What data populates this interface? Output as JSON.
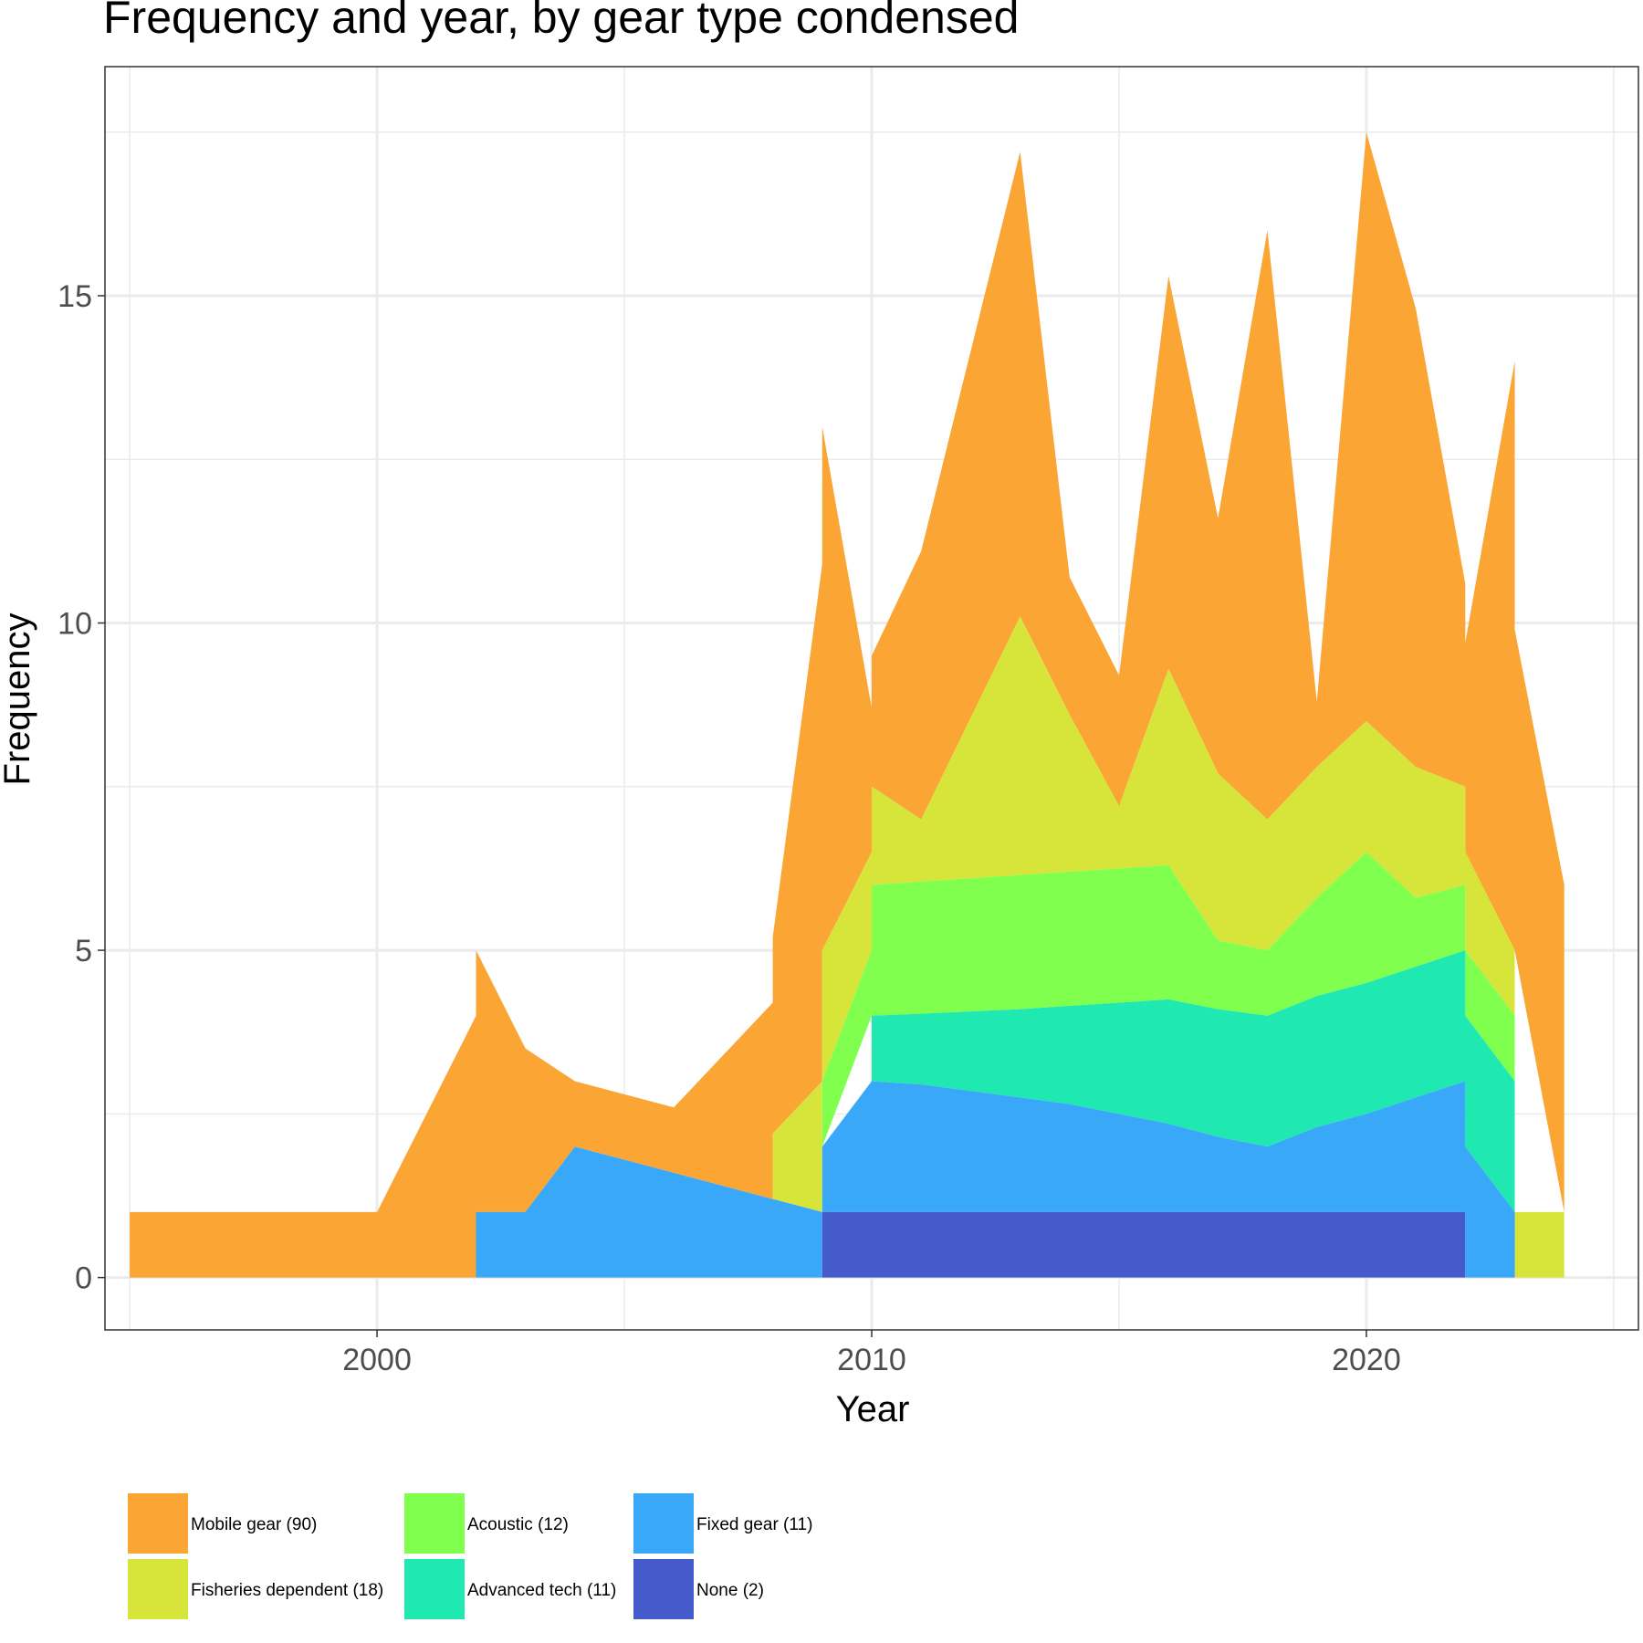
{
  "chart_data": {
    "type": "area",
    "stacked": true,
    "title": "Frequency and year, by gear type condensed",
    "xlabel": "Year",
    "ylabel": "Frequency",
    "xlim": [
      1994.5,
      2025.5
    ],
    "ylim": [
      -0.8,
      18.5
    ],
    "x_ticks": [
      2000,
      2010,
      2020
    ],
    "x_tick_labels": [
      "2000",
      "2010",
      "2020"
    ],
    "y_ticks": [
      0,
      5,
      10,
      15
    ],
    "y_tick_labels": [
      "0",
      "5",
      "10",
      "15"
    ],
    "grid": true,
    "legend_position": "bottom-left",
    "series": [
      {
        "name": "Mobile gear (90)",
        "color": "#FBA535",
        "points": [
          [
            1995,
            0,
            1
          ],
          [
            2000,
            0,
            1
          ],
          [
            2002,
            0,
            4
          ],
          [
            2002,
            1,
            5
          ],
          [
            2003,
            1,
            3.5
          ],
          [
            2004,
            2,
            3
          ],
          [
            2006,
            1.6,
            2.6
          ],
          [
            2008,
            1.2,
            4.2
          ],
          [
            2008,
            2.2,
            5.2
          ],
          [
            2009,
            3,
            10.9
          ],
          [
            2009,
            5,
            13
          ],
          [
            2010,
            6.5,
            8.7
          ],
          [
            2010,
            7.5,
            9.5
          ],
          [
            2011,
            7,
            11.1
          ],
          [
            2013,
            10.1,
            17.2
          ],
          [
            2014,
            8.6,
            10.7
          ],
          [
            2015,
            7.2,
            9.2
          ],
          [
            2016,
            9.3,
            15.3
          ],
          [
            2017,
            7.7,
            11.6
          ],
          [
            2018,
            7,
            16
          ],
          [
            2019,
            7.8,
            8.8
          ],
          [
            2020,
            8.5,
            17.5
          ],
          [
            2021,
            7.8,
            14.8
          ],
          [
            2022,
            7.5,
            10.6
          ],
          [
            2022,
            6.5,
            9.7
          ],
          [
            2023,
            5,
            14
          ],
          [
            2023,
            5,
            9.9
          ],
          [
            2024,
            1,
            6
          ]
        ]
      },
      {
        "name": "Fisheries dependent (18)",
        "color": "#D7E53A",
        "points": [
          [
            2008,
            1.2,
            1.2
          ],
          [
            2008,
            1.2,
            2.2
          ],
          [
            2009,
            1,
            3
          ],
          [
            2009,
            3,
            5
          ],
          [
            2010,
            5,
            6.5
          ],
          [
            2010,
            6,
            7.5
          ],
          [
            2011,
            6.05,
            7
          ],
          [
            2013,
            6.15,
            10.1
          ],
          [
            2014,
            6.2,
            8.6
          ],
          [
            2015,
            6.25,
            7.2
          ],
          [
            2016,
            6.3,
            9.3
          ],
          [
            2017,
            5.15,
            7.7
          ],
          [
            2018,
            5,
            7
          ],
          [
            2019,
            5.8,
            7.8
          ],
          [
            2020,
            6.5,
            8.5
          ],
          [
            2021,
            5.8,
            7.8
          ],
          [
            2022,
            6,
            7.5
          ],
          [
            2022,
            5,
            6.5
          ],
          [
            2023,
            4,
            5
          ],
          [
            2023,
            0,
            1
          ],
          [
            2024,
            0,
            1
          ]
        ]
      },
      {
        "name": "Acoustic (12)",
        "color": "#80FF4F",
        "points": [
          [
            2009,
            2,
            2
          ],
          [
            2009,
            2,
            3
          ],
          [
            2010,
            4,
            5
          ],
          [
            2010,
            4,
            6
          ],
          [
            2011,
            4.03,
            6.05
          ],
          [
            2013,
            4.1,
            6.15
          ],
          [
            2014,
            4.15,
            6.2
          ],
          [
            2015,
            4.2,
            6.25
          ],
          [
            2016,
            4.25,
            6.3
          ],
          [
            2017,
            4.1,
            5.15
          ],
          [
            2018,
            4,
            5
          ],
          [
            2019,
            4.3,
            5.8
          ],
          [
            2020,
            4.5,
            6.5
          ],
          [
            2021,
            4.75,
            5.8
          ],
          [
            2022,
            5,
            6
          ],
          [
            2022,
            4,
            5
          ],
          [
            2023,
            3,
            4
          ]
        ]
      },
      {
        "name": "Advanced tech (11)",
        "color": "#1FE8B0",
        "points": [
          [
            2010,
            3,
            3
          ],
          [
            2010,
            3,
            4
          ],
          [
            2011,
            2.95,
            4.03
          ],
          [
            2013,
            2.75,
            4.1
          ],
          [
            2014,
            2.65,
            4.15
          ],
          [
            2015,
            2.5,
            4.2
          ],
          [
            2016,
            2.35,
            4.25
          ],
          [
            2017,
            2.15,
            4.1
          ],
          [
            2018,
            2,
            4
          ],
          [
            2019,
            2.3,
            4.3
          ],
          [
            2020,
            2.5,
            4.5
          ],
          [
            2021,
            2.75,
            4.75
          ],
          [
            2022,
            3,
            5
          ],
          [
            2022,
            2,
            4
          ],
          [
            2023,
            1,
            3
          ]
        ]
      },
      {
        "name": "Fixed gear (11)",
        "color": "#3AA8F9",
        "points": [
          [
            2002,
            0,
            0
          ],
          [
            2002,
            0,
            1
          ],
          [
            2003,
            0,
            1
          ],
          [
            2004,
            0,
            2
          ],
          [
            2006,
            0,
            1.6
          ],
          [
            2008,
            0,
            1.2
          ],
          [
            2009,
            0,
            1
          ],
          [
            2009,
            1,
            2
          ],
          [
            2010,
            1,
            3
          ],
          [
            2011,
            1,
            2.95
          ],
          [
            2013,
            1,
            2.75
          ],
          [
            2014,
            1,
            2.65
          ],
          [
            2015,
            1,
            2.5
          ],
          [
            2016,
            1,
            2.35
          ],
          [
            2017,
            1,
            2.15
          ],
          [
            2018,
            1,
            2
          ],
          [
            2019,
            1,
            2.3
          ],
          [
            2020,
            1,
            2.5
          ],
          [
            2021,
            1,
            2.75
          ],
          [
            2022,
            1,
            3
          ],
          [
            2022,
            0,
            2
          ],
          [
            2023,
            0,
            1
          ]
        ]
      },
      {
        "name": "None (2)",
        "color": "#465BCB",
        "points": [
          [
            2009,
            0,
            0
          ],
          [
            2009,
            0,
            1
          ],
          [
            2022,
            0,
            1
          ],
          [
            2022,
            0,
            0
          ]
        ]
      }
    ],
    "legend": [
      {
        "label": "Mobile gear (90)",
        "color": "#FBA535"
      },
      {
        "label": "Fisheries dependent (18)",
        "color": "#D7E53A"
      },
      {
        "label": "Acoustic (12)",
        "color": "#80FF4F"
      },
      {
        "label": "Advanced tech (11)",
        "color": "#1FE8B0"
      },
      {
        "label": "Fixed gear (11)",
        "color": "#3AA8F9"
      },
      {
        "label": "None (2)",
        "color": "#465BCB"
      }
    ]
  }
}
